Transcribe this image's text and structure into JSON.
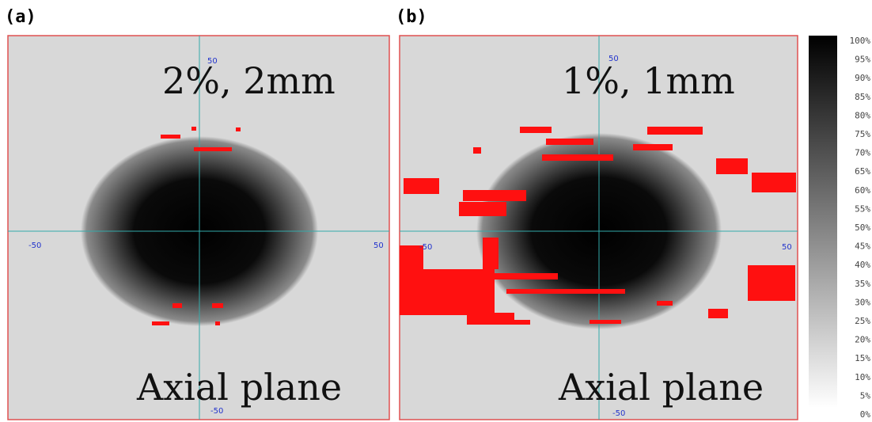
{
  "panels": [
    {
      "label": "(a)",
      "criterion": "2%, 2mm",
      "plane": "Axial plane",
      "ticks": {
        "top": "50",
        "left": "-50",
        "right": "50",
        "bottom": "-50"
      }
    },
    {
      "label": "(b)",
      "criterion": "1%, 1mm",
      "plane": "Axial plane",
      "ticks": {
        "top": "50",
        "left": "-50",
        "right": "50",
        "bottom": "-50"
      }
    }
  ],
  "colorbar": {
    "labels": [
      "100%",
      "95%",
      "90%",
      "85%",
      "80%",
      "75%",
      "70%",
      "65%",
      "60%",
      "55%",
      "50%",
      "45%",
      "40%",
      "35%",
      "30%",
      "25%",
      "20%",
      "15%",
      "10%",
      "5%",
      "0%"
    ]
  }
}
